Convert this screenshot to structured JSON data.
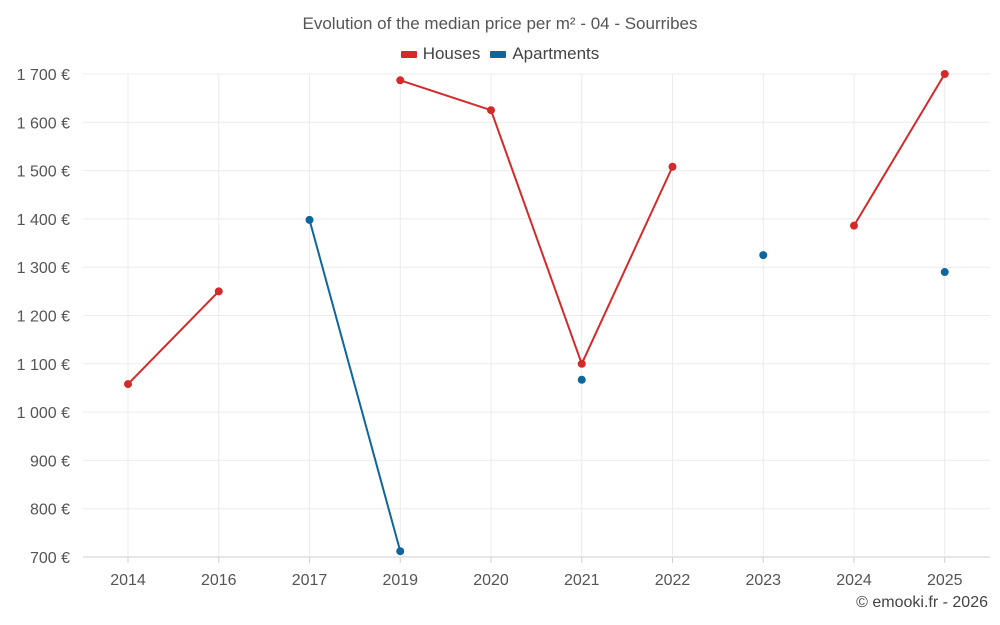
{
  "chart_data": {
    "type": "line",
    "title": "Evolution of the median price per m² - 04 - Sourribes",
    "categories": [
      "2014",
      "2016",
      "2017",
      "2019",
      "2020",
      "2021",
      "2022",
      "2023",
      "2024",
      "2025"
    ],
    "y_ticks": [
      700,
      800,
      900,
      1000,
      1100,
      1200,
      1300,
      1400,
      1500,
      1600,
      1700
    ],
    "y_tick_labels": [
      "700 €",
      "800 €",
      "900 €",
      "1 000 €",
      "1 100 €",
      "1 200 €",
      "1 300 €",
      "1 400 €",
      "1 500 €",
      "1 600 €",
      "1 700 €"
    ],
    "ylim": [
      700,
      1700
    ],
    "grid": true,
    "legend_position": "top-center",
    "series": [
      {
        "name": "Houses",
        "color": "#d42a2a",
        "values": [
          1058,
          1250,
          null,
          1687,
          1625,
          1100,
          1508,
          null,
          1386,
          1700
        ]
      },
      {
        "name": "Apartments",
        "color": "#0f669c",
        "values": [
          null,
          null,
          1398,
          712,
          null,
          1067,
          null,
          1325,
          null,
          1290
        ]
      }
    ],
    "credit": "© emooki.fr - 2026"
  }
}
